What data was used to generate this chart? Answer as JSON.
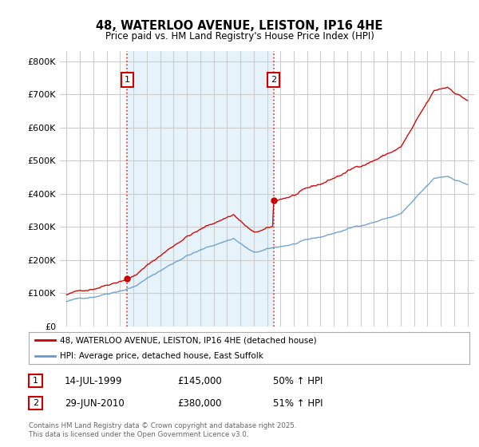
{
  "title": "48, WATERLOO AVENUE, LEISTON, IP16 4HE",
  "subtitle": "Price paid vs. HM Land Registry's House Price Index (HPI)",
  "legend_line1": "48, WATERLOO AVENUE, LEISTON, IP16 4HE (detached house)",
  "legend_line2": "HPI: Average price, detached house, East Suffolk",
  "red_color": "#cc0000",
  "blue_color": "#6699cc",
  "blue_fill": "#ddeeff",
  "footnote": "Contains HM Land Registry data © Crown copyright and database right 2025.\nThis data is licensed under the Open Government Licence v3.0.",
  "table_rows": [
    {
      "num": "1",
      "date": "14-JUL-1999",
      "price": "£145,000",
      "hpi": "50% ↑ HPI"
    },
    {
      "num": "2",
      "date": "29-JUN-2010",
      "price": "£380,000",
      "hpi": "51% ↑ HPI"
    }
  ],
  "marker1_year": 1999.54,
  "marker2_year": 2010.49,
  "ylim": [
    0,
    830000
  ],
  "yticks": [
    0,
    100000,
    200000,
    300000,
    400000,
    500000,
    600000,
    700000,
    800000
  ],
  "ytick_labels": [
    "£0",
    "£100K",
    "£200K",
    "£300K",
    "£400K",
    "£500K",
    "£600K",
    "£700K",
    "£800K"
  ],
  "background_color": "#ffffff",
  "grid_color": "#cccccc"
}
